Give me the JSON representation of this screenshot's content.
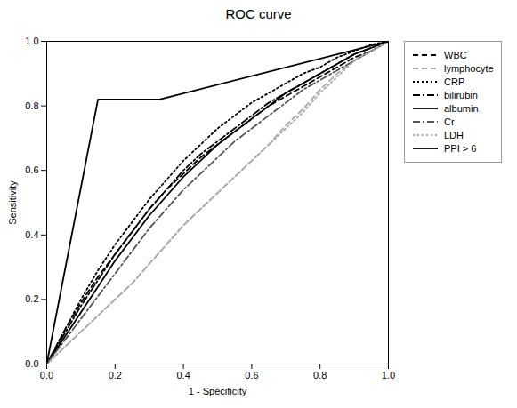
{
  "chart_data": {
    "type": "line",
    "title": "ROC curve",
    "xlabel": "1 - Specificity",
    "ylabel": "Sensitivity",
    "xlim": [
      0.0,
      1.0
    ],
    "ylim": [
      0.0,
      1.0
    ],
    "xticks": [
      {
        "value": 0.0,
        "label": "0.0"
      },
      0.2,
      0.4,
      0.6,
      0.8,
      {
        "value": 1.0,
        "label": "1.0"
      }
    ],
    "yticks": [
      {
        "value": 0.0,
        "label": "0.0"
      },
      0.2,
      0.4,
      0.6,
      0.8,
      {
        "value": 1.0,
        "label": "1.0"
      }
    ],
    "grid": false,
    "legend": "right",
    "series": [
      {
        "name": "WBC",
        "color": "#000000",
        "line_style": "dashed",
        "x": [
          0,
          0.05,
          0.1,
          0.15,
          0.2,
          0.25,
          0.3,
          0.35,
          0.4,
          0.45,
          0.5,
          0.55,
          0.6,
          0.65,
          0.7,
          0.75,
          0.8,
          0.85,
          0.9,
          0.95,
          1.0
        ],
        "values": [
          0,
          0.1,
          0.19,
          0.27,
          0.34,
          0.41,
          0.48,
          0.54,
          0.59,
          0.64,
          0.68,
          0.72,
          0.76,
          0.8,
          0.83,
          0.86,
          0.89,
          0.92,
          0.95,
          0.97,
          1.0
        ]
      },
      {
        "name": "lymphocyte",
        "color": "#aaaaaa",
        "line_style": "dashed",
        "x": [
          0,
          0.05,
          0.1,
          0.15,
          0.2,
          0.25,
          0.3,
          0.35,
          0.4,
          0.45,
          0.5,
          0.55,
          0.6,
          0.65,
          0.7,
          0.75,
          0.8,
          0.85,
          0.9,
          0.95,
          1.0
        ],
        "values": [
          0,
          0.05,
          0.1,
          0.15,
          0.2,
          0.25,
          0.31,
          0.37,
          0.43,
          0.48,
          0.53,
          0.58,
          0.63,
          0.68,
          0.74,
          0.79,
          0.85,
          0.9,
          0.94,
          0.97,
          1.0
        ]
      },
      {
        "name": "CRP",
        "color": "#000000",
        "line_style": "dotted",
        "x": [
          0,
          0.05,
          0.1,
          0.15,
          0.2,
          0.25,
          0.3,
          0.35,
          0.4,
          0.45,
          0.5,
          0.55,
          0.6,
          0.65,
          0.7,
          0.75,
          0.8,
          0.85,
          0.9,
          0.95,
          1.0
        ],
        "values": [
          0,
          0.1,
          0.2,
          0.29,
          0.37,
          0.44,
          0.51,
          0.57,
          0.63,
          0.68,
          0.73,
          0.77,
          0.81,
          0.84,
          0.87,
          0.9,
          0.92,
          0.95,
          0.97,
          0.99,
          1.0
        ]
      },
      {
        "name": "bilirubin",
        "color": "#000000",
        "line_style": "dashdot",
        "x": [
          0,
          0.05,
          0.1,
          0.15,
          0.2,
          0.25,
          0.3,
          0.35,
          0.4,
          0.45,
          0.5,
          0.55,
          0.6,
          0.65,
          0.7,
          0.75,
          0.8,
          0.85,
          0.9,
          0.95,
          1.0
        ],
        "values": [
          0,
          0.09,
          0.18,
          0.26,
          0.34,
          0.41,
          0.48,
          0.54,
          0.6,
          0.65,
          0.69,
          0.73,
          0.77,
          0.81,
          0.84,
          0.87,
          0.9,
          0.93,
          0.96,
          0.98,
          1.0
        ]
      },
      {
        "name": "albumin",
        "color": "#000000",
        "line_style": "solid",
        "x": [
          0,
          0.05,
          0.1,
          0.15,
          0.2,
          0.25,
          0.3,
          0.35,
          0.4,
          0.45,
          0.5,
          0.55,
          0.6,
          0.65,
          0.7,
          0.75,
          0.8,
          0.85,
          0.9,
          0.95,
          1.0
        ],
        "values": [
          0,
          0.08,
          0.16,
          0.24,
          0.32,
          0.39,
          0.46,
          0.52,
          0.58,
          0.63,
          0.68,
          0.72,
          0.76,
          0.8,
          0.84,
          0.87,
          0.9,
          0.93,
          0.96,
          0.98,
          1.0
        ]
      },
      {
        "name": "Cr",
        "color": "#555555",
        "line_style": "dashdot",
        "x": [
          0,
          0.05,
          0.1,
          0.15,
          0.2,
          0.25,
          0.3,
          0.35,
          0.4,
          0.45,
          0.5,
          0.55,
          0.6,
          0.65,
          0.7,
          0.75,
          0.8,
          0.85,
          0.9,
          0.95,
          1.0
        ],
        "values": [
          0,
          0.07,
          0.14,
          0.21,
          0.28,
          0.35,
          0.42,
          0.48,
          0.54,
          0.59,
          0.64,
          0.69,
          0.73,
          0.77,
          0.81,
          0.85,
          0.88,
          0.91,
          0.94,
          0.97,
          1.0
        ]
      },
      {
        "name": "LDH",
        "color": "#aaaaaa",
        "line_style": "dotted",
        "x": [
          0,
          0.05,
          0.1,
          0.15,
          0.2,
          0.25,
          0.3,
          0.35,
          0.4,
          0.45,
          0.5,
          0.55,
          0.6,
          0.65,
          0.7,
          0.75,
          0.8,
          0.85,
          0.9,
          0.95,
          1.0
        ],
        "values": [
          0,
          0.05,
          0.1,
          0.15,
          0.2,
          0.25,
          0.31,
          0.37,
          0.43,
          0.48,
          0.53,
          0.58,
          0.63,
          0.68,
          0.73,
          0.78,
          0.84,
          0.89,
          0.94,
          0.97,
          1.0
        ]
      },
      {
        "name": "PPI > 6",
        "color": "#000000",
        "line_style": "solid",
        "x": [
          0,
          0.15,
          0.33,
          1.0
        ],
        "values": [
          0,
          0.82,
          0.82,
          1.0
        ]
      }
    ]
  }
}
